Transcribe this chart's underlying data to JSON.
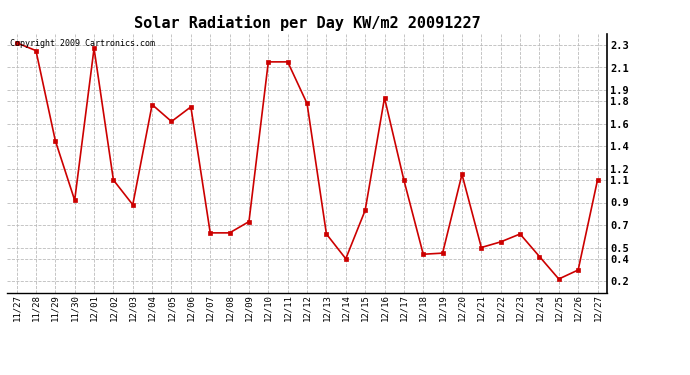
{
  "title": "Solar Radiation per Day KW/m2 20091227",
  "copyright": "Copyright 2009 Cartronics.com",
  "dates": [
    "11/27",
    "11/28",
    "11/29",
    "11/30",
    "12/01",
    "12/02",
    "12/03",
    "12/04",
    "12/05",
    "12/06",
    "12/07",
    "12/08",
    "12/09",
    "12/10",
    "12/11",
    "12/12",
    "12/13",
    "12/14",
    "12/15",
    "12/16",
    "12/17",
    "12/18",
    "12/19",
    "12/20",
    "12/21",
    "12/22",
    "12/23",
    "12/24",
    "12/25",
    "12/26",
    "12/27"
  ],
  "values": [
    2.32,
    2.25,
    1.45,
    0.92,
    2.27,
    1.1,
    0.88,
    1.77,
    1.62,
    1.75,
    0.63,
    0.63,
    0.73,
    2.15,
    2.15,
    1.78,
    0.62,
    0.4,
    0.83,
    1.83,
    1.1,
    0.44,
    0.45,
    1.15,
    0.5,
    0.55,
    0.62,
    0.42,
    0.22,
    0.3,
    1.1
  ],
  "line_color": "#cc0000",
  "marker_color": "#cc0000",
  "marker_size": 3,
  "line_width": 1.2,
  "background_color": "#ffffff",
  "grid_color": "#bbbbbb",
  "ylim": [
    0.1,
    2.4
  ],
  "yticks": [
    0.2,
    0.4,
    0.5,
    0.7,
    0.9,
    1.1,
    1.2,
    1.4,
    1.6,
    1.8,
    1.9,
    2.1,
    2.3
  ],
  "title_fontsize": 11,
  "tick_fontsize": 6.5,
  "ytick_fontsize": 7.5,
  "copyright_fontsize": 6
}
